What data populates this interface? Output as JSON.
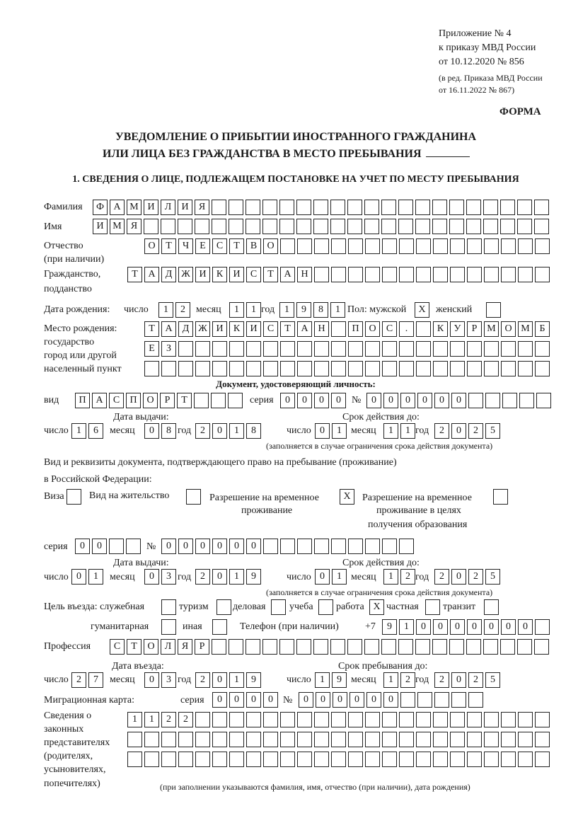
{
  "header": {
    "appendix": "Приложение № 4",
    "order": "к приказу МВД России",
    "order_date": "от 10.12.2020 № 856",
    "edition1": "(в ред. Приказа МВД России",
    "edition2": "от 16.11.2022 № 867)",
    "form_label": "ФОРМА",
    "title1": "УВЕДОМЛЕНИЕ О ПРИБЫТИИ ИНОСТРАННОГО ГРАЖДАНИНА",
    "title2": "ИЛИ ЛИЦА БЕЗ ГРАЖДАНСТВА В МЕСТО ПРЕБЫВАНИЯ",
    "section1": "1. СВЕДЕНИЯ О ЛИЦЕ, ПОДЛЕЖАЩЕМ ПОСТАНОВКЕ НА УЧЕТ ПО МЕСТУ ПРЕБЫВАНИЯ"
  },
  "labels": {
    "surname": "Фамилия",
    "name": "Имя",
    "patronymic1": "Отчество",
    "patronymic2": "(при наличии)",
    "citizenship1": "Гражданство,",
    "citizenship2": "подданство",
    "birth_date": "Дата рождения:",
    "day": "число",
    "month": "месяц",
    "year": "год",
    "sex": "Пол: мужской",
    "female": "женский",
    "birthplace1": "Место рождения:",
    "birthplace2": "государство",
    "birthplace3": "город или другой",
    "birthplace4": "населенный пункт",
    "id_doc": "Документ, удостоверяющий личность:",
    "kind": "вид",
    "series": "серия",
    "number": "№",
    "issue_date": "Дата выдачи:",
    "valid_until": "Срок действия до:",
    "validity_note": "(заполняется в случае ограничения срока действия документа)",
    "stay_doc1": "Вид и реквизиты документа, подтверждающего право на пребывание (проживание)",
    "stay_doc2": "в Российской Федерации:",
    "visa": "Виза",
    "residence": "Вид на жительство",
    "temp_res1": "Разрешение на временное",
    "temp_res2": "проживание",
    "temp_edu1": "Разрешение на временное",
    "temp_edu2": "проживание в целях",
    "temp_edu3": "получения образования",
    "purpose": "Цель въезда: служебная",
    "tourism": "туризм",
    "business": "деловая",
    "study": "учеба",
    "work": "работа",
    "private": "частная",
    "transit": "транзит",
    "humanitarian": "гуманитарная",
    "other": "иная",
    "phone": "Телефон (при наличии)",
    "phone_prefix": "+7",
    "profession": "Профессия",
    "entry_date": "Дата въезда:",
    "stay_until": "Срок пребывания до:",
    "migration_card": "Миграционная карта:",
    "reps1": "Сведения о",
    "reps2": "законных",
    "reps3": "представителях",
    "reps4": "(родителях,",
    "reps5": "усыновителях,",
    "reps6": "попечителях)",
    "reps_note": "(при заполнении указываются фамилия, имя, отчество (при наличии), дата рождения)"
  },
  "fields": {
    "surname": "ФАМИЛИЯ",
    "name": "ИМЯ",
    "patronymic": "ОТЧЕСТВО",
    "citizenship": "ТАДЖИКИСТАН",
    "birth_day": "12",
    "birth_month": "11",
    "birth_year": "1981",
    "sex_male": "X",
    "sex_female": "",
    "birthplace1": "ТАДЖИКИСТАН ПОС. КУРМОМБ",
    "birthplace2": "ЕЗ",
    "birthplace3": "",
    "id_kind": "ПАСПОРТ",
    "id_series": "0000",
    "id_number": "000000",
    "id_issue_day": "16",
    "id_issue_month": "08",
    "id_issue_year": "2018",
    "id_valid_day": "01",
    "id_valid_month": "11",
    "id_valid_year": "2025",
    "visa": "",
    "residence": "",
    "temp_res": "X",
    "temp_edu": "",
    "stay_series": "00",
    "stay_number": "000000",
    "stay_issue_day": "01",
    "stay_issue_month": "03",
    "stay_issue_year": "2019",
    "stay_valid_day": "01",
    "stay_valid_month": "12",
    "stay_valid_year": "2025",
    "p_service": "",
    "p_tourism": "",
    "p_business": "",
    "p_study": "",
    "p_work": "X",
    "p_private": "",
    "p_transit": "",
    "p_humanitarian": "",
    "p_other": "",
    "phone": "910000000",
    "profession": "СТОЛЯР",
    "entry_day": "27",
    "entry_month": "03",
    "entry_year": "2019",
    "until_day": "19",
    "until_month": "12",
    "until_year": "2025",
    "mc_series": "0000",
    "mc_number": "000000",
    "reps1": "1122",
    "reps2": "",
    "reps3": ""
  }
}
